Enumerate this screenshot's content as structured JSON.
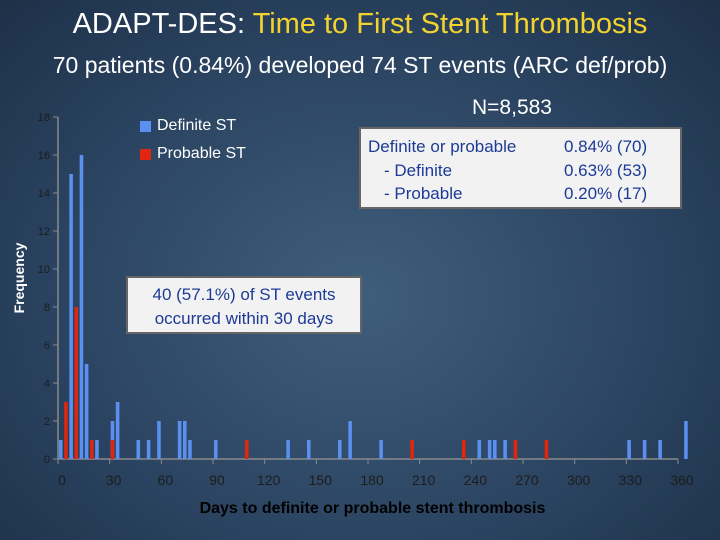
{
  "slide": {
    "title_main": "ADAPT-DES:",
    "title_accent": "Time to First Stent Thrombosis",
    "subtitle": "70 patients (0.84%) developed 74 ST events (ARC def/prob)",
    "n_label": "N=8,583"
  },
  "stats_box": {
    "rows": [
      {
        "label": "Definite or probable",
        "value": "0.84% (70)"
      },
      {
        "label": "- Definite",
        "value": "0.63% (53)"
      },
      {
        "label": "- Probable",
        "value": "0.20% (17)"
      }
    ]
  },
  "callout": {
    "line1": "40 (57.1%) of ST events",
    "line2": "occurred within 30 days"
  },
  "colors": {
    "definite": "#5b8ff0",
    "probable": "#e0260f",
    "axis": "#8a8a8a",
    "ticktext": "#1d1d1d"
  },
  "chart_data": {
    "type": "bar",
    "title": "",
    "xlabel": "Days to definite or probable stent thrombosis",
    "ylabel": "Frequency",
    "xlim": [
      0,
      360
    ],
    "ylim": [
      0,
      18
    ],
    "xticks": [
      0,
      30,
      60,
      90,
      120,
      150,
      180,
      210,
      240,
      270,
      300,
      330,
      360
    ],
    "yticks": [
      0,
      2,
      4,
      6,
      8,
      10,
      12,
      14,
      16,
      18
    ],
    "bin_width_days": 3,
    "legend": {
      "position": "top-left",
      "entries": [
        "Definite ST",
        "Probable ST"
      ]
    },
    "series": [
      {
        "name": "Definite ST",
        "type": "definite",
        "bars": [
          {
            "day": 0,
            "value": 1
          },
          {
            "day": 6,
            "value": 15
          },
          {
            "day": 12,
            "value": 16
          },
          {
            "day": 15,
            "value": 5
          },
          {
            "day": 18,
            "value": 1
          },
          {
            "day": 21,
            "value": 1
          },
          {
            "day": 30,
            "value": 2
          },
          {
            "day": 33,
            "value": 3
          },
          {
            "day": 45,
            "value": 1
          },
          {
            "day": 51,
            "value": 1
          },
          {
            "day": 57,
            "value": 2
          },
          {
            "day": 69,
            "value": 2
          },
          {
            "day": 72,
            "value": 2
          },
          {
            "day": 75,
            "value": 1
          },
          {
            "day": 90,
            "value": 1
          },
          {
            "day": 132,
            "value": 1
          },
          {
            "day": 144,
            "value": 1
          },
          {
            "day": 162,
            "value": 1
          },
          {
            "day": 168,
            "value": 2
          },
          {
            "day": 186,
            "value": 1
          },
          {
            "day": 243,
            "value": 1
          },
          {
            "day": 249,
            "value": 1
          },
          {
            "day": 252,
            "value": 1
          },
          {
            "day": 258,
            "value": 1
          },
          {
            "day": 330,
            "value": 1
          },
          {
            "day": 339,
            "value": 1
          },
          {
            "day": 348,
            "value": 1
          },
          {
            "day": 363,
            "value": 2
          }
        ]
      },
      {
        "name": "Probable ST",
        "type": "probable",
        "bars": [
          {
            "day": 3,
            "value": 3
          },
          {
            "day": 9,
            "value": 8
          },
          {
            "day": 18,
            "value": 1
          },
          {
            "day": 30,
            "value": 1
          },
          {
            "day": 108,
            "value": 1
          },
          {
            "day": 204,
            "value": 1
          },
          {
            "day": 234,
            "value": 1
          },
          {
            "day": 264,
            "value": 1
          },
          {
            "day": 282,
            "value": 1
          }
        ]
      }
    ]
  }
}
